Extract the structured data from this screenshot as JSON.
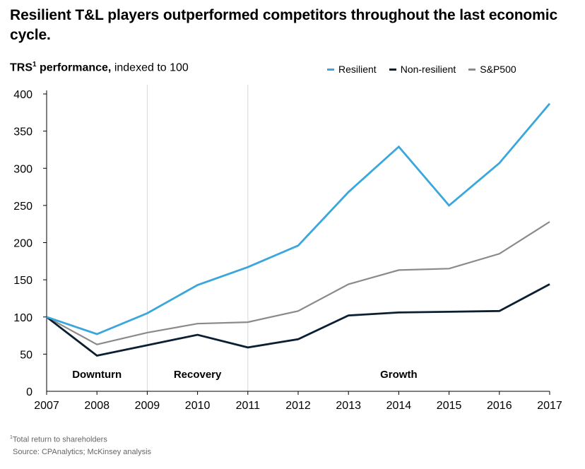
{
  "title": "Resilient T&L players outperformed competitors throughout the last economic cycle.",
  "subtitle": {
    "main": "TRS",
    "sup": "1",
    "bold_tail": " performance,",
    "rest": " indexed to 100"
  },
  "footnote": {
    "sup": "1",
    "text": "Total return to shareholders"
  },
  "source": "Source: CPAnalytics; McKinsey analysis",
  "colors": {
    "resilient": "#3aa7dc",
    "non_resilient": "#0b1f33",
    "sp500": "#8a8a8a",
    "divider": "#d6d6d6"
  },
  "chart_data": {
    "type": "line",
    "title": "TRS performance, indexed to 100",
    "xlabel": "",
    "ylabel": "",
    "categories": [
      "2007",
      "2008",
      "2009",
      "2010",
      "2011",
      "2012",
      "2013",
      "2014",
      "2015",
      "2016",
      "2017"
    ],
    "ylim": [
      0,
      400
    ],
    "yticks": [
      0,
      50,
      100,
      150,
      200,
      250,
      300,
      350,
      400
    ],
    "grid": false,
    "legend_position": "top-right",
    "series": [
      {
        "name": "Resilient",
        "color_key": "resilient",
        "values": [
          100,
          77,
          105,
          143,
          167,
          196,
          268,
          329,
          250,
          307,
          387
        ]
      },
      {
        "name": "Non-resilient",
        "color_key": "non_resilient",
        "values": [
          100,
          48,
          62,
          76,
          59,
          70,
          102,
          106,
          107,
          108,
          144
        ]
      },
      {
        "name": "S&P500",
        "color_key": "sp500",
        "values": [
          100,
          63,
          79,
          91,
          93,
          108,
          144,
          163,
          165,
          185,
          228
        ]
      }
    ],
    "phase_dividers": [
      "2009",
      "2011"
    ],
    "phases": [
      {
        "label": "Downturn",
        "from": "2007",
        "to": "2009"
      },
      {
        "label": "Recovery",
        "from": "2009",
        "to": "2011"
      },
      {
        "label": "Growth",
        "from": "2011",
        "to": "2017"
      }
    ]
  }
}
